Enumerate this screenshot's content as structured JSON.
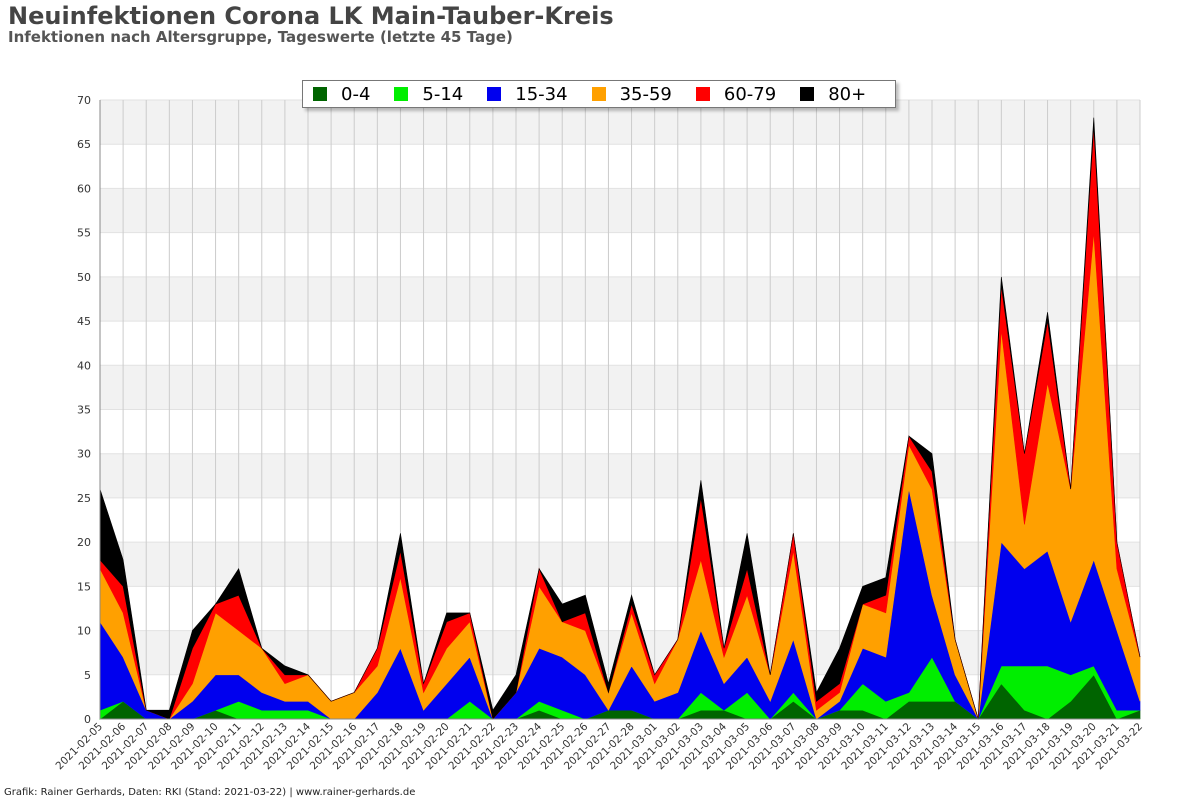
{
  "title": "Neuinfektionen Corona LK Main-Tauber-Kreis",
  "subtitle": "Infektionen nach Altersgruppe, Tageswerte (letzte 45 Tage)",
  "footer": "Grafik: Rainer Gerhards, Daten: RKI (Stand: 2021-03-22) | www.rainer-gerhards.de",
  "chart_data": {
    "type": "area",
    "stacked": true,
    "ylim": [
      0,
      70
    ],
    "yticks": [
      0,
      5,
      10,
      15,
      20,
      25,
      30,
      35,
      40,
      45,
      50,
      55,
      60,
      65,
      70
    ],
    "grid": true,
    "legend_position": "top",
    "x": [
      "2021-02-05",
      "2021-02-06",
      "2021-02-07",
      "2021-02-08",
      "2021-02-09",
      "2021-02-10",
      "2021-02-11",
      "2021-02-12",
      "2021-02-13",
      "2021-02-14",
      "2021-02-15",
      "2021-02-16",
      "2021-02-17",
      "2021-02-18",
      "2021-02-19",
      "2021-02-20",
      "2021-02-21",
      "2021-02-22",
      "2021-02-23",
      "2021-02-24",
      "2021-02-25",
      "2021-02-26",
      "2021-02-27",
      "2021-02-28",
      "2021-03-01",
      "2021-03-02",
      "2021-03-03",
      "2021-03-04",
      "2021-03-05",
      "2021-03-06",
      "2021-03-07",
      "2021-03-08",
      "2021-03-09",
      "2021-03-10",
      "2021-03-11",
      "2021-03-12",
      "2021-03-13",
      "2021-03-14",
      "2021-03-15",
      "2021-03-16",
      "2021-03-17",
      "2021-03-18",
      "2021-03-19",
      "2021-03-20",
      "2021-03-21",
      "2021-03-22"
    ],
    "series": [
      {
        "name": "0-4",
        "color": "#006400",
        "values": [
          0,
          2,
          0,
          0,
          0,
          1,
          0,
          0,
          0,
          0,
          0,
          0,
          0,
          0,
          0,
          0,
          0,
          0,
          0,
          1,
          0,
          0,
          1,
          1,
          0,
          0,
          1,
          1,
          0,
          0,
          2,
          0,
          1,
          1,
          0,
          2,
          2,
          2,
          0,
          4,
          1,
          0,
          2,
          5,
          0,
          1
        ]
      },
      {
        "name": "5-14",
        "color": "#00ee00",
        "values": [
          1,
          0,
          0,
          0,
          0,
          0,
          2,
          1,
          1,
          1,
          0,
          0,
          0,
          0,
          0,
          0,
          2,
          0,
          0,
          1,
          1,
          0,
          0,
          0,
          0,
          0,
          2,
          0,
          3,
          0,
          1,
          0,
          0,
          3,
          2,
          1,
          5,
          0,
          0,
          2,
          5,
          6,
          3,
          1,
          1,
          0
        ]
      },
      {
        "name": "15-34",
        "color": "#0000ee",
        "values": [
          10,
          5,
          1,
          0,
          2,
          4,
          3,
          2,
          1,
          1,
          0,
          0,
          3,
          8,
          1,
          4,
          5,
          0,
          3,
          6,
          6,
          5,
          0,
          5,
          2,
          3,
          7,
          3,
          4,
          2,
          6,
          0,
          1,
          4,
          5,
          23,
          7,
          3,
          0,
          14,
          11,
          13,
          6,
          12,
          9,
          1
        ]
      },
      {
        "name": "35-59",
        "color": "#ffa000",
        "values": [
          6,
          5,
          0,
          0,
          2,
          7,
          5,
          5,
          2,
          3,
          2,
          3,
          3,
          8,
          2,
          4,
          4,
          0,
          0,
          7,
          4,
          5,
          2,
          6,
          2,
          6,
          8,
          3,
          7,
          3,
          10,
          1,
          1,
          5,
          5,
          5,
          12,
          4,
          0,
          24,
          5,
          19,
          15,
          37,
          7,
          5
        ]
      },
      {
        "name": "60-79",
        "color": "#ff0000",
        "values": [
          1,
          3,
          0,
          0,
          4,
          1,
          4,
          0,
          1,
          0,
          0,
          0,
          2,
          3,
          1,
          3,
          1,
          0,
          0,
          2,
          0,
          2,
          0,
          1,
          1,
          0,
          7,
          1,
          3,
          0,
          2,
          1,
          1,
          0,
          2,
          1,
          2,
          0,
          0,
          5,
          8,
          7,
          0,
          12,
          3,
          0
        ]
      },
      {
        "name": "80+",
        "color": "#000000",
        "values": [
          8,
          3,
          0,
          1,
          2,
          0,
          3,
          0,
          1,
          0,
          0,
          0,
          0,
          2,
          0,
          1,
          0,
          1,
          2,
          0,
          2,
          2,
          1,
          1,
          0,
          0,
          2,
          0,
          4,
          0,
          0,
          1,
          4,
          2,
          2,
          0,
          2,
          0,
          0,
          1,
          0,
          1,
          0,
          1,
          0,
          0
        ]
      }
    ]
  }
}
